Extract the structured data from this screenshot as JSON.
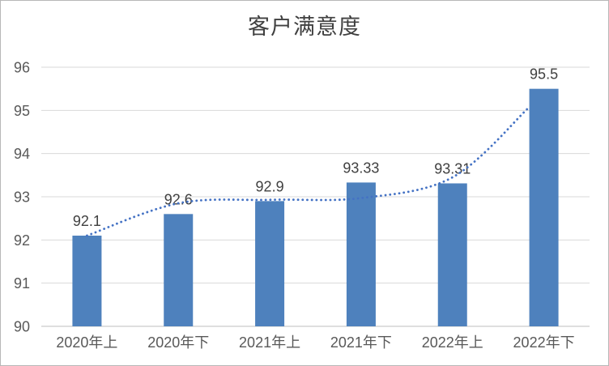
{
  "window": {
    "background": "#ffffff",
    "border_color": "#b7b7b7"
  },
  "chart_data": {
    "type": "bar",
    "title": "客户满意度",
    "categories": [
      "2020年上",
      "2020年下",
      "2021年上",
      "2021年下",
      "2022年上",
      "2022年下"
    ],
    "values": [
      92.1,
      92.6,
      92.9,
      93.33,
      93.31,
      95.5
    ],
    "data_labels": [
      "92.1",
      "92.6",
      "92.9",
      "93.33",
      "93.31",
      "95.5"
    ],
    "ylim": [
      90,
      96
    ],
    "yticks": [
      90,
      91,
      92,
      93,
      94,
      95,
      96
    ],
    "ytick_labels": [
      "90",
      "91",
      "92",
      "93",
      "94",
      "95",
      "96"
    ],
    "xlabel": "",
    "ylabel": "",
    "grid": true,
    "legend": "none",
    "bar_color": "#4e81bd",
    "trendline": {
      "style": "dotted",
      "color": "#4472c4",
      "points": [
        92.1,
        92.85,
        92.93,
        92.97,
        93.45,
        95.05
      ]
    },
    "gridline_color": "#d9d9d9",
    "axis_line_color": "#bfbfbf",
    "tick_label_color": "#595959",
    "data_label_color": "#404040",
    "title_color": "#404040"
  }
}
